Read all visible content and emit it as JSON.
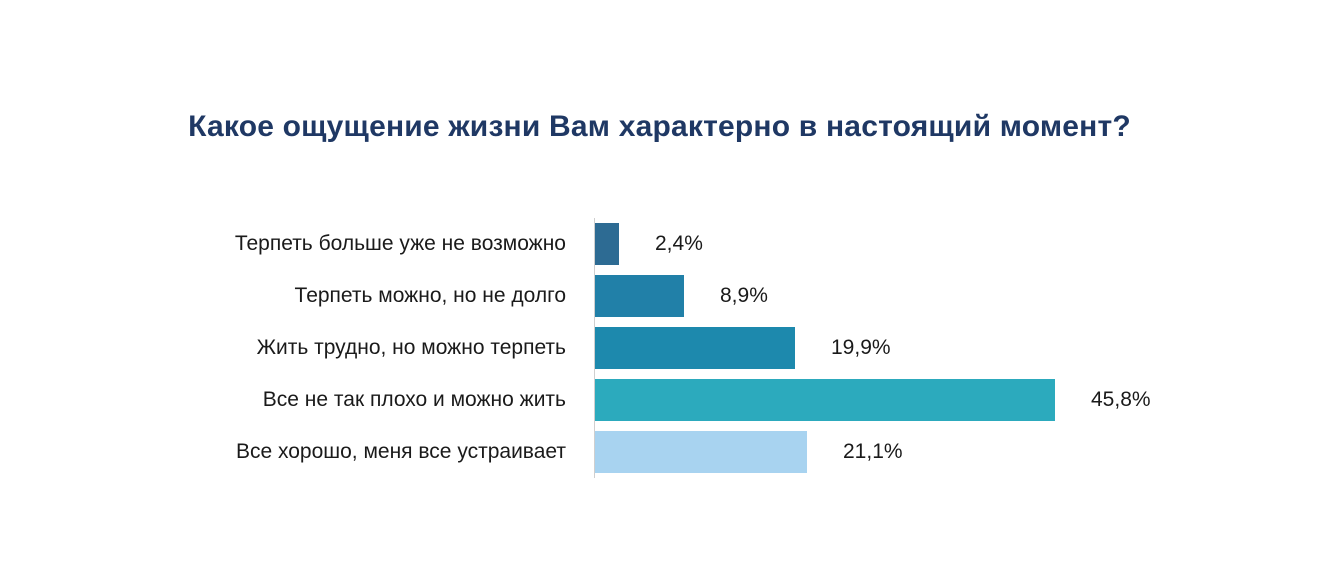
{
  "page": {
    "background_color": "#ffffff"
  },
  "chart_data": {
    "type": "bar",
    "orientation": "horizontal",
    "title": "Какое ощущение жизни Вам характерно в настоящий момент?",
    "title_color": "#1f3864",
    "label_color": "#1a1a1a",
    "categories": [
      "Терпеть больше уже не возможно",
      "Терпеть можно, но не долго",
      "Жить трудно, но можно терпеть",
      "Все не так плохо и можно жить",
      "Все хорошо, меня все устраивает"
    ],
    "values": [
      2.4,
      8.9,
      19.9,
      45.8,
      21.1
    ],
    "value_labels": [
      "2,4%",
      "8,9%",
      "19,9%",
      "45,8%",
      "21,1%"
    ],
    "bar_colors": [
      "#2d6b93",
      "#2180a8",
      "#1d89ad",
      "#2caabd",
      "#a8d3f0"
    ],
    "xlim": [
      0,
      50
    ],
    "grid": false,
    "legend": false,
    "axis_line_color": "#cfcfcf"
  }
}
